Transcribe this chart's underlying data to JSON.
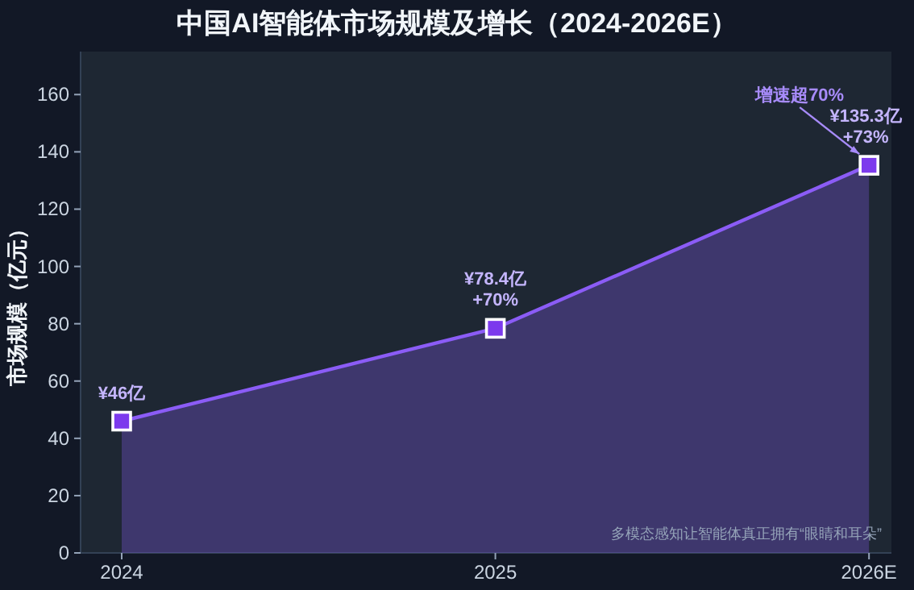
{
  "chart_data": {
    "type": "area",
    "title": "中国AI智能体市场规模及增长（2024-2026E）",
    "ylabel": "市场规模（亿元）",
    "categories": [
      "2024",
      "2025",
      "2026E"
    ],
    "series": [
      {
        "color": "#8b5cf6",
        "values": [
          46,
          78.4,
          135.3
        ],
        "value_labels": [
          "¥46亿",
          "¥78.4亿\n+70%",
          "¥135.3亿\n+73%"
        ]
      }
    ],
    "ylim": [
      0,
      175
    ],
    "yticks": [
      0,
      20,
      40,
      60,
      80,
      100,
      120,
      140,
      160
    ],
    "marker": "square",
    "line_style": "solid",
    "grid": false,
    "annotations": [
      "增速超70%",
      "多模态感知让智能体真正拥有“眼睛和耳朵”"
    ]
  }
}
